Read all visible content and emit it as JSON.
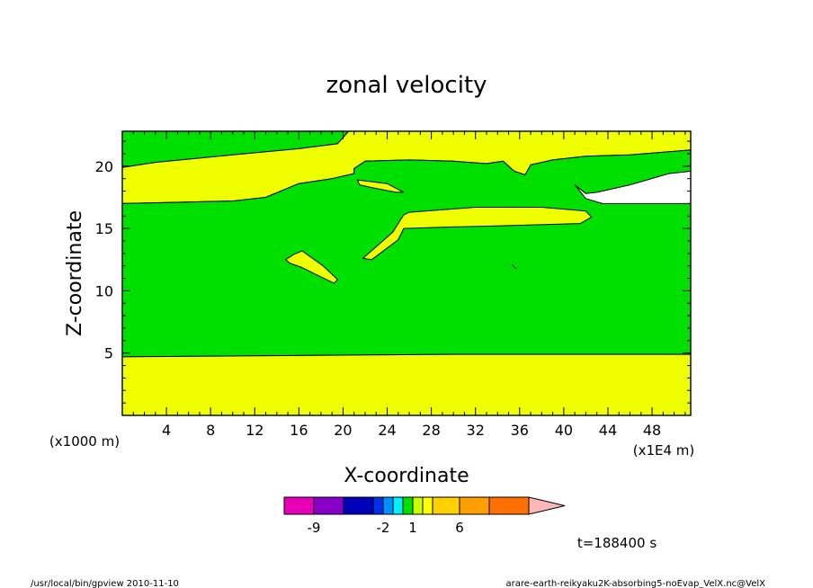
{
  "chart_data": {
    "type": "heatmap",
    "title": "zonal velocity",
    "xlabel": "X-coordinate",
    "ylabel": "Z-coordinate",
    "x_unit_left": "(x1000 m)",
    "x_unit_right": "(x1E4 m)",
    "xlim": [
      0,
      51.5
    ],
    "ylim": [
      0,
      22.8
    ],
    "x_ticks": [
      4,
      8,
      12,
      16,
      20,
      24,
      28,
      32,
      36,
      40,
      44,
      48
    ],
    "y_ticks": [
      5,
      10,
      15,
      20
    ],
    "colors": {
      "green": "#00e000",
      "yellow": "#f0ff00"
    },
    "regions": [
      {
        "name": "top-green",
        "color": "green",
        "points": [
          [
            0,
            22.8
          ],
          [
            20.5,
            22.8
          ],
          [
            19.5,
            21.8
          ],
          [
            16,
            21.4
          ],
          [
            10,
            20.9
          ],
          [
            3,
            20.3
          ],
          [
            0,
            19.9
          ]
        ]
      },
      {
        "name": "upper-yellow-band",
        "color": "yellow",
        "points": [
          [
            0,
            19.9
          ],
          [
            3,
            20.3
          ],
          [
            10,
            20.9
          ],
          [
            16,
            21.4
          ],
          [
            19.5,
            21.8
          ],
          [
            20.5,
            22.8
          ],
          [
            51.5,
            22.8
          ],
          [
            51.5,
            21.3
          ],
          [
            46,
            20.9
          ],
          [
            42,
            20.8
          ],
          [
            39,
            20.5
          ],
          [
            37,
            20.1
          ],
          [
            36.5,
            19.3
          ],
          [
            35.5,
            19.6
          ],
          [
            34.5,
            20.4
          ],
          [
            33,
            20.2
          ],
          [
            30,
            20.4
          ],
          [
            26,
            20.5
          ],
          [
            22,
            20.4
          ],
          [
            21,
            19.8
          ],
          [
            21,
            19.4
          ],
          [
            19,
            19.0
          ],
          [
            16,
            18.6
          ],
          [
            13,
            17.5
          ],
          [
            10,
            17.2
          ],
          [
            5,
            17.1
          ],
          [
            0,
            17.0
          ]
        ]
      },
      {
        "name": "lower-green-band",
        "color": "green",
        "points": [
          [
            0,
            17.0
          ],
          [
            5,
            17.1
          ],
          [
            10,
            17.2
          ],
          [
            13,
            17.5
          ],
          [
            16,
            18.6
          ],
          [
            19,
            19.0
          ],
          [
            21,
            19.4
          ],
          [
            21,
            19.8
          ],
          [
            22,
            20.4
          ],
          [
            26,
            20.5
          ],
          [
            30,
            20.4
          ],
          [
            33,
            20.2
          ],
          [
            34.5,
            20.4
          ],
          [
            35.5,
            19.6
          ],
          [
            36.5,
            19.3
          ],
          [
            37,
            20.1
          ],
          [
            39,
            20.5
          ],
          [
            42,
            20.8
          ],
          [
            46,
            20.9
          ],
          [
            51.5,
            21.3
          ],
          [
            51.5,
            19.6
          ],
          [
            49.5,
            19.4
          ],
          [
            46,
            18.5
          ],
          [
            43,
            17.9
          ],
          [
            42,
            17.8
          ],
          [
            41,
            18.5
          ],
          [
            42,
            17.4
          ],
          [
            43.5,
            17.0
          ],
          [
            48,
            17.0
          ],
          [
            51.5,
            17.0
          ],
          [
            51.5,
            4.9
          ],
          [
            30,
            4.9
          ],
          [
            15,
            4.8
          ],
          [
            0,
            4.7
          ]
        ]
      },
      {
        "name": "bottom-yellow",
        "color": "yellow",
        "points": [
          [
            0,
            4.7
          ],
          [
            15,
            4.8
          ],
          [
            30,
            4.9
          ],
          [
            51.5,
            4.9
          ],
          [
            51.5,
            0
          ],
          [
            0,
            0
          ]
        ]
      },
      {
        "name": "small-island",
        "color": "yellow",
        "points": [
          [
            21.3,
            18.9
          ],
          [
            24,
            18.6
          ],
          [
            25.5,
            17.9
          ],
          [
            24.8,
            17.9
          ],
          [
            22.5,
            18.3
          ],
          [
            21.5,
            18.5
          ]
        ]
      },
      {
        "name": "long-island",
        "color": "yellow",
        "points": [
          [
            25.5,
            15.0
          ],
          [
            29,
            15.1
          ],
          [
            34,
            15.2
          ],
          [
            41.5,
            15.4
          ],
          [
            42.5,
            15.9
          ],
          [
            42,
            16.4
          ],
          [
            38,
            16.7
          ],
          [
            32,
            16.7
          ],
          [
            26,
            16.3
          ],
          [
            25.5,
            16.1
          ],
          [
            24.5,
            14.7
          ],
          [
            21.8,
            12.6
          ],
          [
            22.6,
            12.5
          ],
          [
            25,
            14.1
          ]
        ]
      },
      {
        "name": "left-island",
        "color": "yellow",
        "points": [
          [
            14.8,
            12.5
          ],
          [
            15.5,
            12.9
          ],
          [
            16.3,
            13.2
          ],
          [
            18.2,
            12.0
          ],
          [
            19.5,
            10.9
          ],
          [
            19.2,
            10.6
          ],
          [
            17.8,
            11.2
          ],
          [
            16.2,
            11.9
          ],
          [
            15.2,
            12.2
          ]
        ]
      }
    ],
    "speck": {
      "x": 35.3,
      "y": 12.1
    },
    "colorbar": {
      "colors": [
        "#e800b8",
        "#8800c8",
        "#0000b8",
        "#0030e8",
        "#0090ff",
        "#00f0ff",
        "#00e000",
        "#c8ff00",
        "#ffff00",
        "#ffd000",
        "#ffa000",
        "#ff7000",
        "#ff0000",
        "#ff8080",
        "#ffb8b8"
      ],
      "labels": [
        "-9",
        "-2",
        "1",
        "6"
      ]
    },
    "time_label": "t=188400 s"
  },
  "footer": {
    "left": "/usr/local/bin/gpview  2010-11-10",
    "right": "arare-earth-reikyaku2K-absorbing5-noEvap_VelX.nc@VelX"
  }
}
